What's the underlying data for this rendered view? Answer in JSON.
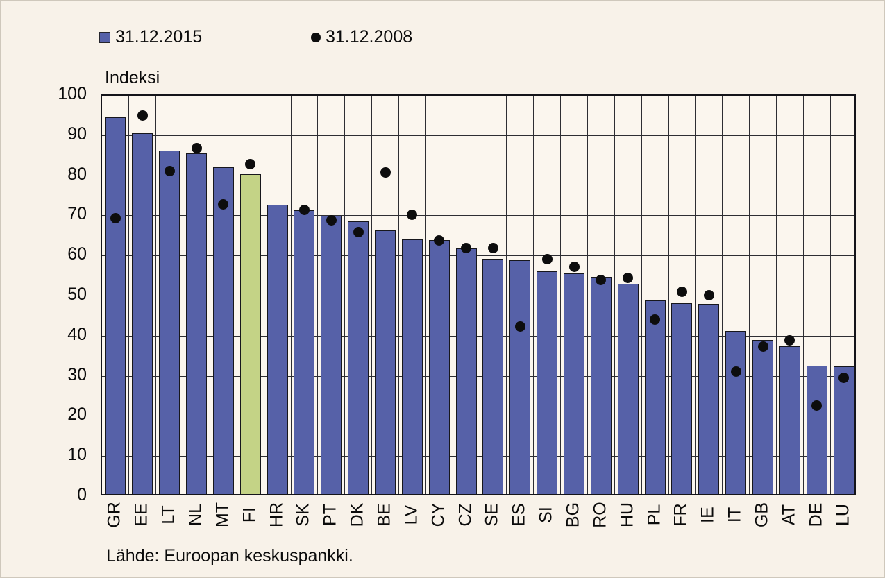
{
  "legend": {
    "items": [
      {
        "label": "31.12.2015",
        "marker": "square",
        "color": "#5661a8"
      },
      {
        "label": "31.12.2008",
        "marker": "dot",
        "color": "#0d0d0d"
      }
    ]
  },
  "axis_title": "Indeksi",
  "source_note": "Lähde: Euroopan keskuspankki.",
  "chart_data": {
    "type": "bar",
    "title": "",
    "xlabel": "",
    "ylabel": "Indeksi",
    "ylim": [
      0,
      100
    ],
    "yticks": [
      0,
      10,
      20,
      30,
      40,
      50,
      60,
      70,
      80,
      90,
      100
    ],
    "grid": true,
    "legend_position": "top-left",
    "categories": [
      "GR",
      "EE",
      "LT",
      "NL",
      "MT",
      "FI",
      "HR",
      "SK",
      "PT",
      "DK",
      "BE",
      "LV",
      "CY",
      "CZ",
      "SE",
      "ES",
      "SI",
      "BG",
      "RO",
      "HU",
      "PL",
      "FR",
      "IE",
      "IT",
      "GB",
      "AT",
      "DE",
      "LU"
    ],
    "series": [
      {
        "name": "31.12.2015",
        "type": "bar",
        "values": [
          94,
          90,
          85.7,
          85,
          81.5,
          79.8,
          72.2,
          70.7,
          69.4,
          68,
          65.7,
          63.5,
          63.3,
          61.3,
          58.6,
          58.3,
          55.6,
          55,
          54.1,
          52.5,
          48.3,
          47.6,
          47.4,
          40.6,
          38.4,
          36.8,
          32,
          31.8
        ]
      },
      {
        "name": "31.12.2008",
        "type": "scatter",
        "values": [
          69.5,
          95,
          81.3,
          87,
          73,
          83,
          null,
          71.5,
          69,
          66,
          80.8,
          70.3,
          64,
          62,
          62,
          42.5,
          59.2,
          57.3,
          54,
          54.5,
          44.2,
          51.2,
          50.3,
          31.2,
          37.5,
          39,
          22.8,
          29.6
        ]
      }
    ],
    "highlight_category": "FI",
    "colors": {
      "bar": "#5661a8",
      "bar_highlight": "#c4d386",
      "dot": "#0d0d0d",
      "background": "#f8f2e9",
      "plot_background": "#fbf6ee",
      "gridline": "#2e2e33"
    }
  }
}
